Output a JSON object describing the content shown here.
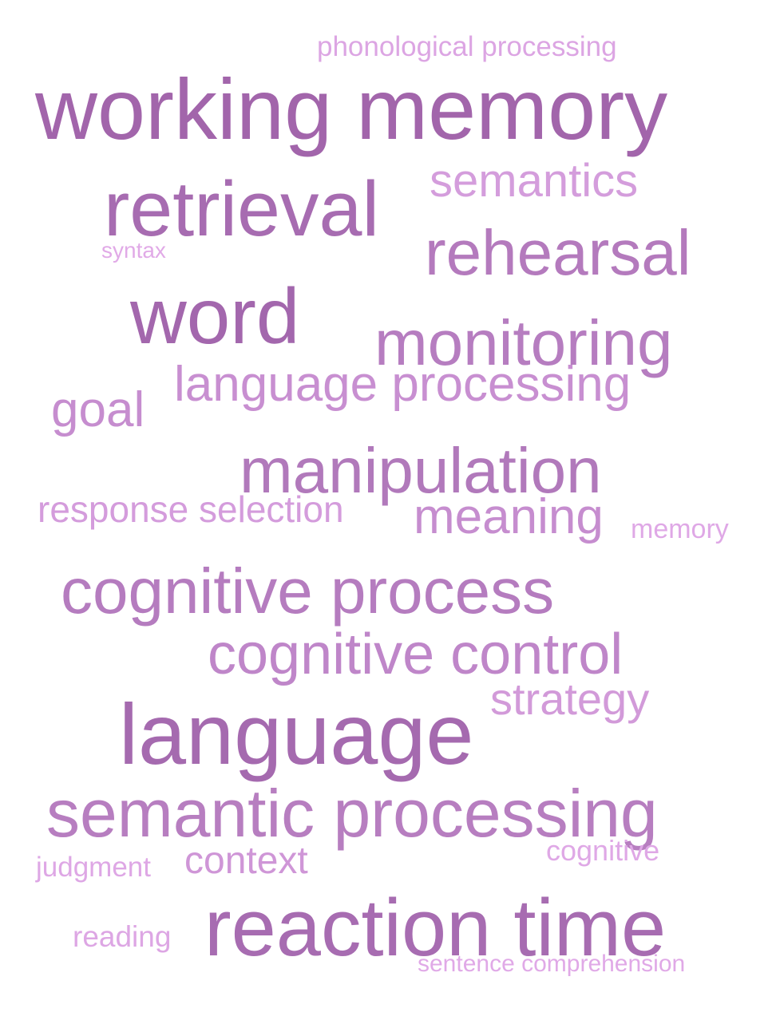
{
  "words": [
    {
      "text": "phonological processing",
      "color": "#dca5e3"
    },
    {
      "text": "working memory",
      "color": "#a265ab"
    },
    {
      "text": "semantics",
      "color": "#d49ddc"
    },
    {
      "text": "retrieval",
      "color": "#a76cb1"
    },
    {
      "text": "syntax",
      "color": "#e1aae7"
    },
    {
      "text": "rehearsal",
      "color": "#b47abd"
    },
    {
      "text": "word",
      "color": "#a367ad"
    },
    {
      "text": "monitoring",
      "color": "#b67dc0"
    },
    {
      "text": "language processing",
      "color": "#c88fd1"
    },
    {
      "text": "goal",
      "color": "#c68dcf"
    },
    {
      "text": "manipulation",
      "color": "#b179bb"
    },
    {
      "text": "response selection",
      "color": "#d49cdc"
    },
    {
      "text": "meaning",
      "color": "#c68dcf"
    },
    {
      "text": "memory",
      "color": "#dfa8e6"
    },
    {
      "text": "cognitive process",
      "color": "#b57cbf"
    },
    {
      "text": "cognitive control",
      "color": "#bf86c9"
    },
    {
      "text": "strategy",
      "color": "#d29ad9"
    },
    {
      "text": "language",
      "color": "#a56aaf"
    },
    {
      "text": "semantic processing",
      "color": "#b77ec0"
    },
    {
      "text": "cognitive",
      "color": "#dfa8e6"
    },
    {
      "text": "judgment",
      "color": "#dea7e5"
    },
    {
      "text": "context",
      "color": "#cf96d7"
    },
    {
      "text": "reaction time",
      "color": "#a76cb1"
    },
    {
      "text": "reading",
      "color": "#dda6e4"
    },
    {
      "text": "sentence comprehension",
      "color": "#e0a9e7"
    }
  ]
}
